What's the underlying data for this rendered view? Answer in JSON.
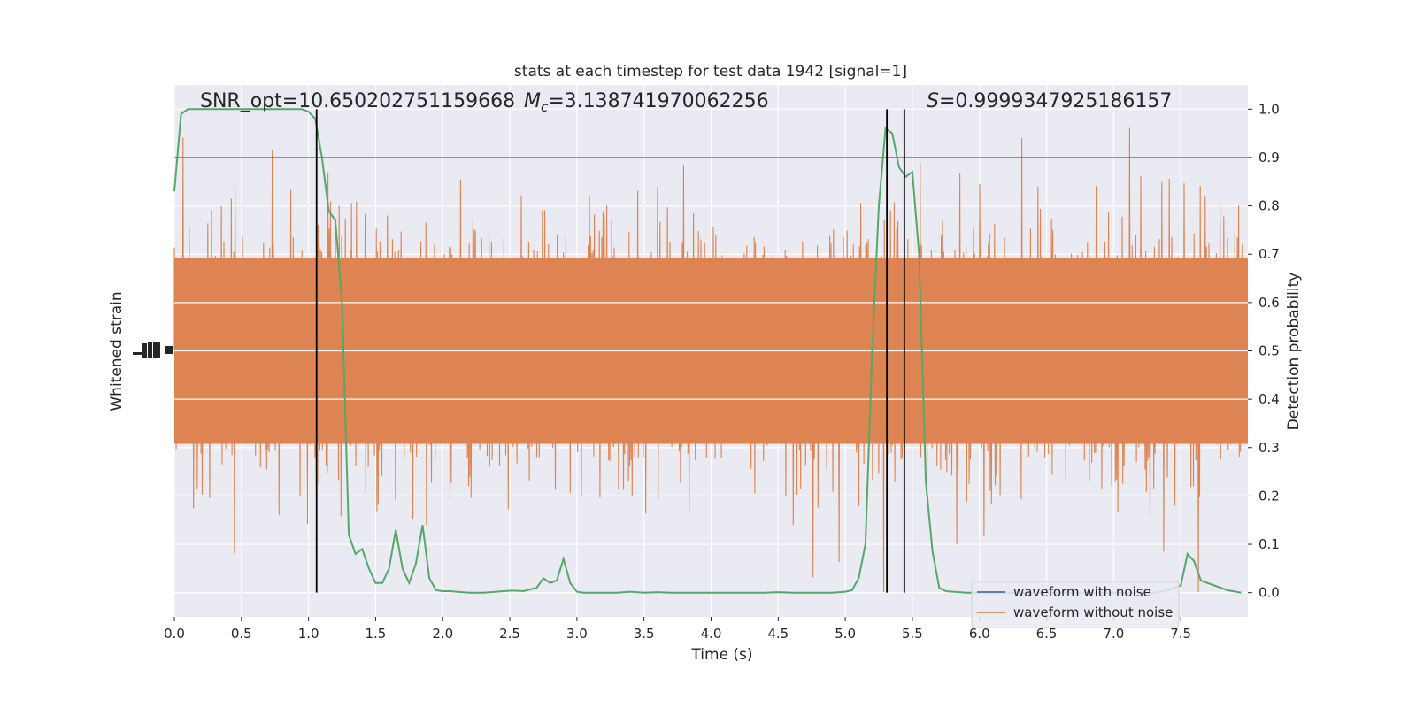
{
  "chart_data": {
    "type": "line",
    "title": "stats at each timestep for test data 1942 [signal=1]",
    "xlabel": "Time (s)",
    "ylabel_left": "Whitened strain",
    "ylabel_right": "Detection probability",
    "xlim": [
      0.0,
      8.0
    ],
    "ylim_right": [
      -0.05,
      1.05
    ],
    "x_ticks": [
      "0.0",
      "0.5",
      "1.0",
      "1.5",
      "2.0",
      "2.5",
      "3.0",
      "3.5",
      "4.0",
      "4.5",
      "5.0",
      "5.5",
      "6.0",
      "6.5",
      "7.0",
      "7.5"
    ],
    "y_ticks_right": [
      "0.0",
      "0.1",
      "0.2",
      "0.3",
      "0.4",
      "0.5",
      "0.6",
      "0.7",
      "0.8",
      "0.9",
      "1.0"
    ],
    "grid": true,
    "colors": {
      "background": "#eaeaf2",
      "waveform_with_noise": "#4c72b0",
      "waveform_without_noise": "#dd8452",
      "probability": "#55a868",
      "threshold": "#c44e52",
      "vlines": "#000000"
    },
    "annotations": {
      "snr": "SNR_opt=10.650202751159668",
      "mc_symbol": "M",
      "mc_sub": "c",
      "mc_value": "=3.138741970062256",
      "s_symbol": "S",
      "s_value": "=0.9999347925186157"
    },
    "threshold": 0.9,
    "vlines_x": [
      1.06,
      5.31,
      5.44
    ],
    "legend": {
      "location": "lower right",
      "entries": [
        "waveform with noise",
        "waveform without noise"
      ]
    },
    "series": [
      {
        "name": "Detection probability",
        "x": [
          0.0,
          0.05,
          0.1,
          0.15,
          0.2,
          0.3,
          0.4,
          0.5,
          0.6,
          0.7,
          0.8,
          0.9,
          0.95,
          1.0,
          1.05,
          1.1,
          1.15,
          1.2,
          1.25,
          1.3,
          1.35,
          1.4,
          1.45,
          1.5,
          1.55,
          1.6,
          1.65,
          1.7,
          1.75,
          1.8,
          1.85,
          1.9,
          1.95,
          2.0,
          2.05,
          2.1,
          2.2,
          2.3,
          2.4,
          2.5,
          2.55,
          2.6,
          2.7,
          2.75,
          2.8,
          2.85,
          2.9,
          2.95,
          3.0,
          3.05,
          3.1,
          3.2,
          3.3,
          3.4,
          3.5,
          3.6,
          3.7,
          3.8,
          3.9,
          4.0,
          4.1,
          4.2,
          4.3,
          4.4,
          4.5,
          4.6,
          4.7,
          4.8,
          4.9,
          5.0,
          5.05,
          5.1,
          5.15,
          5.2,
          5.25,
          5.3,
          5.35,
          5.4,
          5.45,
          5.5,
          5.55,
          5.6,
          5.65,
          5.7,
          5.75,
          5.8,
          5.85,
          5.9,
          6.0,
          6.1,
          6.2,
          6.3,
          6.4,
          6.5,
          6.6,
          6.7,
          6.8,
          6.9,
          7.0,
          7.1,
          7.2,
          7.3,
          7.4,
          7.5,
          7.55,
          7.6,
          7.65,
          7.7,
          7.75,
          7.8,
          7.85,
          7.95
        ],
        "values": [
          0.83,
          0.99,
          1.0,
          1.0,
          1.0,
          1.0,
          1.0,
          1.0,
          1.0,
          1.0,
          1.0,
          1.0,
          1.0,
          0.995,
          0.98,
          0.9,
          0.79,
          0.77,
          0.6,
          0.12,
          0.08,
          0.09,
          0.05,
          0.02,
          0.02,
          0.05,
          0.13,
          0.05,
          0.02,
          0.06,
          0.14,
          0.03,
          0.005,
          0.003,
          0.003,
          0.002,
          0.0,
          0.0,
          0.002,
          0.004,
          0.004,
          0.003,
          0.01,
          0.03,
          0.02,
          0.025,
          0.07,
          0.02,
          0.002,
          0.0,
          0.0,
          0.0,
          0.0,
          0.002,
          0.0,
          0.001,
          0.0,
          0.0,
          0.0,
          0.0,
          0.0,
          0.0,
          0.0,
          0.0,
          0.001,
          0.0,
          0.0,
          0.0,
          0.0,
          0.002,
          0.005,
          0.03,
          0.1,
          0.5,
          0.8,
          0.96,
          0.95,
          0.88,
          0.86,
          0.87,
          0.7,
          0.23,
          0.085,
          0.01,
          0.003,
          0.002,
          0.001,
          0.0,
          0.0,
          0.0,
          0.0,
          0.0,
          0.0,
          0.0,
          0.0,
          0.0,
          0.0,
          0.0,
          0.0,
          0.0,
          0.0,
          0.0,
          0.005,
          0.015,
          0.08,
          0.065,
          0.025,
          0.02,
          0.015,
          0.01,
          0.005,
          0.0
        ]
      }
    ]
  }
}
